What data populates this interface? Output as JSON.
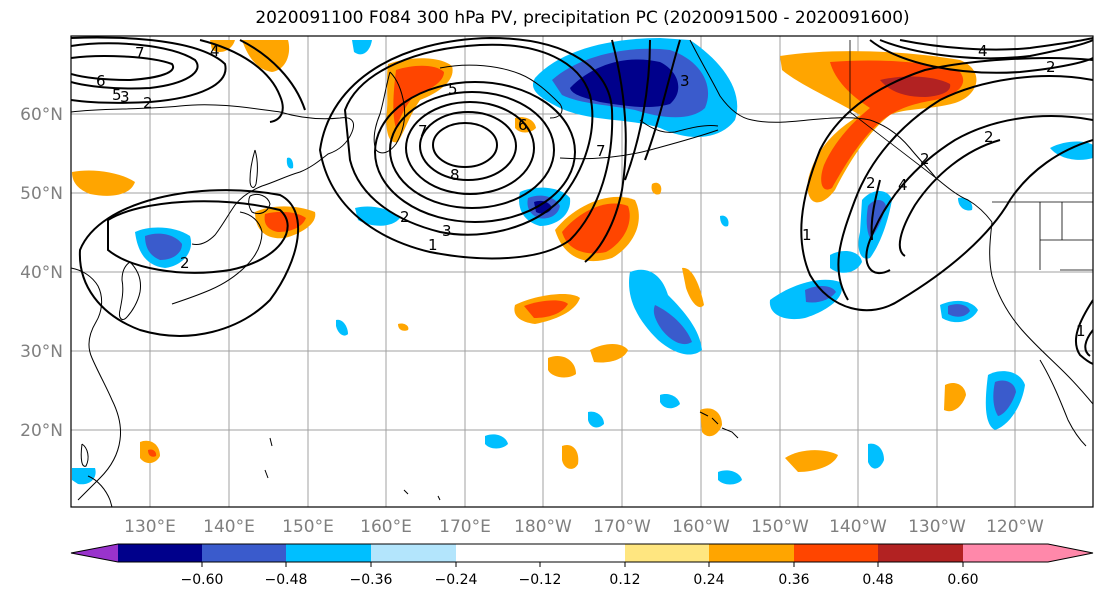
{
  "title": "2020091100 F084 300 hPa PV, precipitation PC (2020091500 - 2020091600)",
  "map": {
    "lat_labels": [
      "60°N",
      "50°N",
      "40°N",
      "30°N",
      "20°N"
    ],
    "lon_labels": [
      "130°E",
      "140°E",
      "150°E",
      "160°E",
      "170°E",
      "180°W",
      "170°W",
      "160°W",
      "150°W",
      "140°W",
      "130°W",
      "120°W"
    ],
    "pv_contour_labels": [
      "7",
      "6",
      "5",
      "3",
      "2",
      "5",
      "7",
      "8",
      "6",
      "4",
      "2",
      "3",
      "1",
      "2",
      "3",
      "2",
      "7",
      "1",
      "2",
      "4",
      "2",
      "4",
      "2",
      "1"
    ]
  },
  "colorbar": {
    "colors": [
      "#9933cc",
      "#00008b",
      "#3a5bcc",
      "#00bfff",
      "#b3e5fc",
      "#ffffff",
      "#ffe680",
      "#ffa500",
      "#ff4500",
      "#b22222",
      "#ff88aa"
    ],
    "tick_labels": [
      "−0.60",
      "−0.48",
      "−0.36",
      "−0.24",
      "−0.12",
      "0.12",
      "0.24",
      "0.36",
      "0.48",
      "0.60"
    ]
  },
  "colors": {
    "strong_negative": "#00008b",
    "negative": "#3a5bcc",
    "weak_negative": "#00bfff",
    "faint_negative": "#b3e5fc",
    "faint_positive": "#ffe680",
    "weak_positive": "#ffa500",
    "positive": "#ff4500",
    "strong_positive": "#b22222",
    "gridline": "#a0a0a0"
  }
}
